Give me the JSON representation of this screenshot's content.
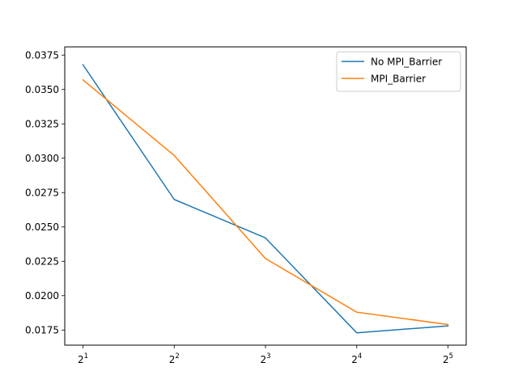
{
  "chart_data": {
    "type": "line",
    "x_scale": "log2",
    "x": [
      2,
      4,
      8,
      16,
      32
    ],
    "x_tick_labels": [
      {
        "base": "2",
        "exp": "1"
      },
      {
        "base": "2",
        "exp": "2"
      },
      {
        "base": "2",
        "exp": "3"
      },
      {
        "base": "2",
        "exp": "4"
      },
      {
        "base": "2",
        "exp": "5"
      }
    ],
    "y_ticks": [
      0.0175,
      0.02,
      0.0225,
      0.025,
      0.0275,
      0.03,
      0.0325,
      0.035,
      0.0375
    ],
    "y_tick_labels": [
      "0.0175",
      "0.0200",
      "0.0225",
      "0.0250",
      "0.0275",
      "0.0300",
      "0.0325",
      "0.0350",
      "0.0375"
    ],
    "ylim": [
      0.0164,
      0.0381
    ],
    "grid": false,
    "legend_position": "top-right",
    "series": [
      {
        "name": "No MPI_Barrier",
        "color": "#1f77b4",
        "values": [
          0.0368,
          0.027,
          0.0242,
          0.0173,
          0.0178
        ]
      },
      {
        "name": "MPI_Barrier",
        "color": "#ff7f0e",
        "values": [
          0.0357,
          0.0302,
          0.0227,
          0.0188,
          0.0179
        ]
      }
    ],
    "title": "",
    "xlabel": "",
    "ylabel": ""
  }
}
